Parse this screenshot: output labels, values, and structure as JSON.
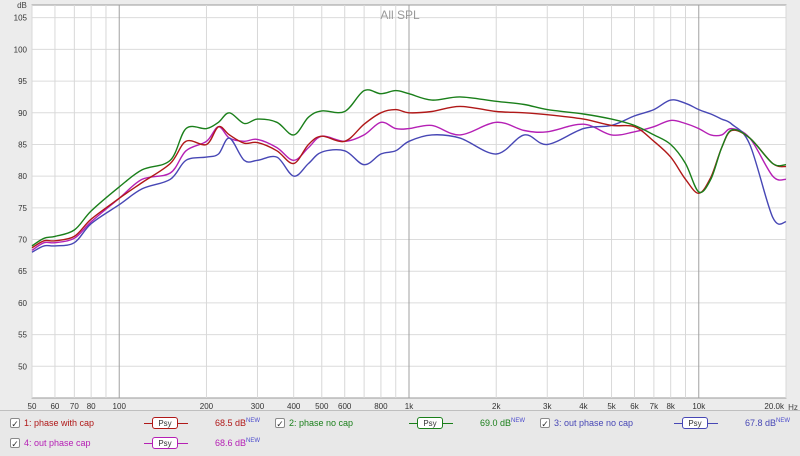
{
  "chart_data": {
    "type": "line",
    "title": "All SPL",
    "ylabel": "dB",
    "xlabel": "Hz",
    "xscale": "log",
    "xlim": [
      50,
      20000
    ],
    "ylim": [
      45,
      107
    ],
    "grid": true,
    "y_ticks": [
      "50",
      "55",
      "60",
      "65",
      "70",
      "75",
      "80",
      "85",
      "90",
      "95",
      "100",
      "105"
    ],
    "x_ticks": [
      {
        "v": 50,
        "label": "50"
      },
      {
        "v": 60,
        "label": "60"
      },
      {
        "v": 70,
        "label": "70"
      },
      {
        "v": 80,
        "label": "80"
      },
      {
        "v": 100,
        "label": "100"
      },
      {
        "v": 200,
        "label": "200"
      },
      {
        "v": 300,
        "label": "300"
      },
      {
        "v": 400,
        "label": "400"
      },
      {
        "v": 500,
        "label": "500"
      },
      {
        "v": 600,
        "label": "600"
      },
      {
        "v": 800,
        "label": "800"
      },
      {
        "v": 1000,
        "label": "1k"
      },
      {
        "v": 2000,
        "label": "2k"
      },
      {
        "v": 3000,
        "label": "3k"
      },
      {
        "v": 4000,
        "label": "4k"
      },
      {
        "v": 5000,
        "label": "5k"
      },
      {
        "v": 6000,
        "label": "6k"
      },
      {
        "v": 7000,
        "label": "7k"
      },
      {
        "v": 8000,
        "label": "8k"
      },
      {
        "v": 10000,
        "label": "10k"
      },
      {
        "v": 20000,
        "label": "20.0k"
      }
    ],
    "series": [
      {
        "name": "1: phase with cap",
        "color": "#b01818",
        "x": [
          50,
          55,
          60,
          70,
          80,
          100,
          120,
          150,
          170,
          200,
          220,
          240,
          270,
          300,
          350,
          400,
          450,
          500,
          600,
          700,
          800,
          900,
          1000,
          1200,
          1500,
          2000,
          2500,
          3000,
          4000,
          5000,
          6000,
          7000,
          8000,
          9000,
          10000,
          11000,
          12000,
          13000,
          15000,
          18000,
          20000
        ],
        "y": [
          68.7,
          69.8,
          69.8,
          70.5,
          73.2,
          76.5,
          79,
          82,
          85.5,
          85,
          87.8,
          86.5,
          85.2,
          85.3,
          84,
          82,
          85,
          86.3,
          85.5,
          88.2,
          90,
          90.5,
          90,
          90.2,
          91,
          90.2,
          90,
          89.7,
          89,
          88,
          87.8,
          85.5,
          83,
          79.5,
          77.3,
          79.8,
          84.5,
          87.2,
          86,
          82,
          81.5
        ]
      },
      {
        "name": "2: phase no cap",
        "color": "#1a7f1a",
        "x": [
          50,
          55,
          60,
          70,
          80,
          100,
          120,
          150,
          170,
          200,
          220,
          240,
          270,
          300,
          350,
          400,
          450,
          500,
          600,
          700,
          800,
          900,
          1000,
          1200,
          1500,
          2000,
          2500,
          3000,
          4000,
          5000,
          6000,
          7000,
          8000,
          9000,
          10000,
          11000,
          12000,
          13000,
          15000,
          18000,
          20000
        ],
        "y": [
          69,
          70.2,
          70.5,
          71.5,
          74.5,
          78.3,
          81,
          82.5,
          87.5,
          87.5,
          88.5,
          90,
          88.3,
          89,
          88.5,
          86.5,
          89.3,
          90.3,
          90.2,
          93.5,
          93,
          93.5,
          93,
          92,
          92.5,
          91.8,
          91.3,
          90.5,
          89.8,
          89,
          88,
          86.5,
          85,
          82,
          77.5,
          79.5,
          84.5,
          87.3,
          86,
          82,
          81.8
        ]
      },
      {
        "name": "3: out phase no cap",
        "color": "#4747b5",
        "x": [
          50,
          55,
          60,
          70,
          80,
          100,
          120,
          150,
          170,
          200,
          220,
          240,
          270,
          300,
          350,
          400,
          450,
          500,
          600,
          700,
          800,
          900,
          1000,
          1200,
          1500,
          2000,
          2500,
          3000,
          4000,
          5000,
          6000,
          7000,
          8000,
          9000,
          10000,
          11000,
          12000,
          13000,
          15000,
          18000,
          20000
        ],
        "y": [
          68,
          69,
          69,
          69.5,
          72.5,
          75.5,
          78,
          79.5,
          82.5,
          83,
          83.5,
          86,
          82.5,
          82.5,
          83,
          80,
          82,
          83.8,
          84,
          81.8,
          83.5,
          84,
          85.5,
          86.5,
          86,
          83.5,
          86.5,
          85,
          87.5,
          88,
          89.5,
          90.5,
          92,
          91.5,
          90.5,
          89.8,
          89,
          88.2,
          85,
          73.5,
          72.8
        ]
      },
      {
        "name": "4: out phase cap",
        "color": "#b520b5",
        "x": [
          50,
          55,
          60,
          70,
          80,
          100,
          120,
          150,
          170,
          200,
          220,
          240,
          270,
          300,
          350,
          400,
          450,
          500,
          600,
          700,
          800,
          900,
          1000,
          1200,
          1500,
          2000,
          2500,
          3000,
          4000,
          5000,
          6000,
          7000,
          8000,
          9000,
          10000,
          11000,
          12000,
          13000,
          15000,
          18000,
          20000
        ],
        "y": [
          68.3,
          69.5,
          69.5,
          70.2,
          72.8,
          76.5,
          79.5,
          80.5,
          84,
          85.5,
          87.8,
          86,
          85.5,
          85.8,
          84.5,
          82.5,
          84.5,
          86.3,
          85.5,
          86.5,
          88.5,
          87.5,
          87.5,
          88,
          86.5,
          88.5,
          87.2,
          87,
          88.2,
          86.5,
          87,
          87.8,
          88.8,
          88.3,
          87.5,
          86.5,
          86.5,
          87.5,
          86,
          80,
          79.5
        ]
      }
    ]
  },
  "legend": [
    {
      "label": "1: phase with cap",
      "level": "68.5 dB",
      "badge": "NEW",
      "psy": "Psy",
      "checked": "✓"
    },
    {
      "label": "2: phase no cap",
      "level": "69.0 dB",
      "badge": "NEW",
      "psy": "Psy",
      "checked": "✓"
    },
    {
      "label": "3: out phase no cap",
      "level": "67.8 dB",
      "badge": "NEW",
      "psy": "Psy",
      "checked": "✓"
    },
    {
      "label": "4: out phase cap",
      "level": "68.6 dB",
      "badge": "NEW",
      "psy": "Psy",
      "checked": "✓"
    }
  ]
}
